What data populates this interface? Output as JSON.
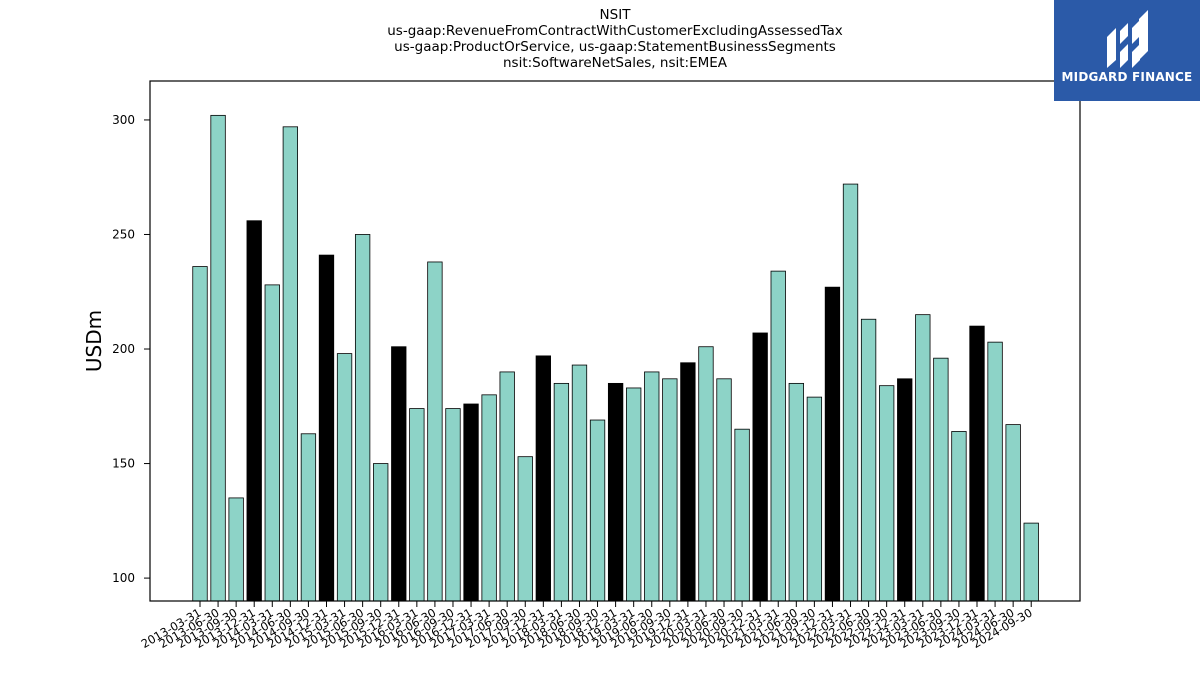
{
  "title_lines": [
    "NSIT",
    "us-gaap:RevenueFromContractWithCustomerExcludingAssessedTax",
    "us-gaap:ProductOrService, us-gaap:StatementBusinessSegments",
    "nsit:SoftwareNetSales, nsit:EMEA"
  ],
  "logo": {
    "text": "MIDGARD FINANCE",
    "background": "#2b5aa8"
  },
  "colors": {
    "bar_default": "#8dd3c7",
    "bar_q4": "#000000",
    "bar_edge": "#000000"
  },
  "chart_data": {
    "type": "bar",
    "title": "NSIT\nus-gaap:RevenueFromContractWithCustomerExcludingAssessedTax\nus-gaap:ProductOrService, us-gaap:StatementBusinessSegments\nnsit:SoftwareNetSales, nsit:EMEA",
    "xlabel": "",
    "ylabel": "USDm",
    "ylim": [
      90,
      317
    ],
    "yticks": [
      100,
      150,
      200,
      250,
      300
    ],
    "grid": false,
    "categories": [
      "2013-03-31",
      "2013-06-30",
      "2013-09-30",
      "2013-12-31",
      "2014-03-31",
      "2014-06-30",
      "2014-09-30",
      "2014-12-31",
      "2015-03-31",
      "2015-06-30",
      "2015-09-30",
      "2015-12-31",
      "2016-03-31",
      "2016-06-30",
      "2016-09-30",
      "2016-12-31",
      "2017-03-31",
      "2017-06-30",
      "2017-09-30",
      "2017-12-31",
      "2018-03-31",
      "2018-06-30",
      "2018-09-30",
      "2018-12-31",
      "2019-03-31",
      "2019-06-30",
      "2019-09-30",
      "2019-12-31",
      "2020-03-31",
      "2020-06-30",
      "2020-09-30",
      "2020-12-31",
      "2021-03-31",
      "2021-06-30",
      "2021-09-30",
      "2021-12-31",
      "2022-03-31",
      "2022-06-30",
      "2022-09-30",
      "2022-12-31",
      "2023-03-31",
      "2023-06-30",
      "2023-09-30",
      "2023-12-31",
      "2024-03-31",
      "2024-06-30",
      "2024-09-30"
    ],
    "values": [
      236,
      302,
      135,
      256,
      228,
      297,
      163,
      241,
      198,
      250,
      150,
      201,
      174,
      238,
      174,
      176,
      180,
      190,
      153,
      197,
      185,
      193,
      169,
      185,
      183,
      190,
      187,
      194,
      201,
      187,
      165,
      207,
      234,
      185,
      179,
      227,
      272,
      213,
      184,
      187,
      215,
      196,
      164,
      210,
      203,
      167,
      124
    ]
  }
}
